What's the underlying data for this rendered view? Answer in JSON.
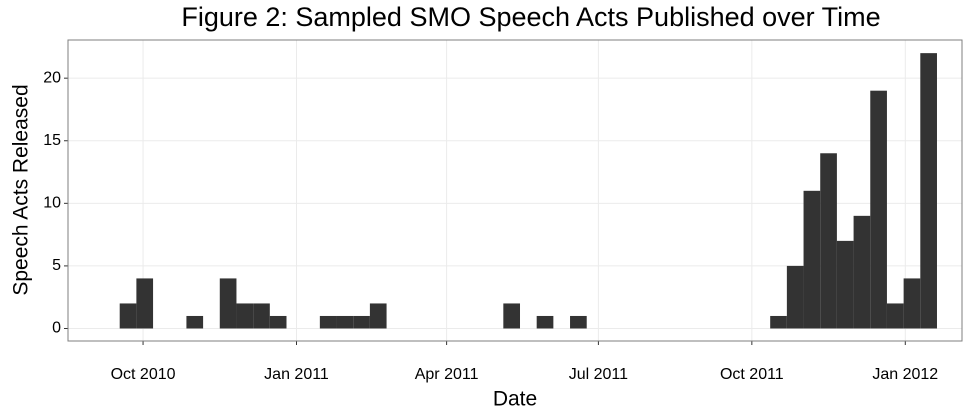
{
  "chart_data": {
    "type": "histogram",
    "title": "Figure 2: Sampled SMO Speech Acts Published over Time",
    "x_label": "Date",
    "y_label": "Speech Acts Released",
    "color": "#333333",
    "grid": true,
    "bins": [
      14869,
      14879,
      14889,
      14899,
      14909,
      14919,
      14929,
      14939,
      14949,
      14959,
      14969,
      14979,
      14989,
      14999,
      15009,
      15019,
      15029,
      15039,
      15049,
      15059,
      15069,
      15079,
      15089,
      15099,
      15109,
      15119,
      15129,
      15139,
      15149,
      15159,
      15169,
      15179,
      15189,
      15199,
      15209,
      15219,
      15229,
      15239,
      15249,
      15259,
      15269,
      15279,
      15289,
      15299,
      15309,
      15319,
      15329,
      15339,
      15349,
      15359
    ],
    "values": [
      2,
      4,
      0,
      0,
      1,
      0,
      4,
      2,
      2,
      1,
      0,
      0,
      1,
      1,
      1,
      2,
      0,
      0,
      0,
      0,
      0,
      0,
      0,
      2,
      0,
      1,
      0,
      1,
      0,
      0,
      0,
      0,
      0,
      0,
      0,
      0,
      0,
      0,
      0,
      1,
      5,
      11,
      14,
      7,
      9,
      19,
      2,
      4,
      22
    ],
    "xlim": [
      14838,
      15374
    ],
    "xticks": [
      {
        "value": 14883,
        "label": "Oct 2010"
      },
      {
        "value": 14975,
        "label": "Jan 2011"
      },
      {
        "value": 15065,
        "label": "Apr 2011"
      },
      {
        "value": 15156,
        "label": "Jul 2011"
      },
      {
        "value": 15248,
        "label": "Oct 2011"
      },
      {
        "value": 15340,
        "label": "Jan 2012"
      }
    ],
    "ylim": [
      -1.0,
      23.05
    ],
    "yticks": [
      0,
      5,
      10,
      15,
      20
    ]
  }
}
